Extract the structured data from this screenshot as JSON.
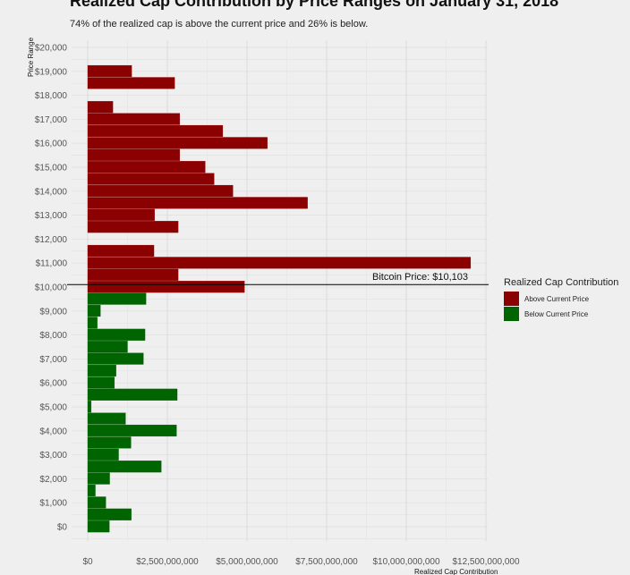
{
  "chart_data": {
    "type": "bar",
    "orientation": "horizontal",
    "title": "Realized Cap Contribution by Price Ranges on January 31, 2018",
    "subtitle": "74% of the realized cap is above the current price and 26% is below.",
    "xlabel": "Realized Cap Contribution",
    "ylabel": "Price Range",
    "xlim": [
      0,
      12500000000
    ],
    "ylim": [
      -1000,
      20000
    ],
    "x_ticks": [
      "$0",
      "$2,500,000,000",
      "$5,000,000,000",
      "$7,500,000,000",
      "$10,000,000,000",
      "$12,500,000,000"
    ],
    "x_tick_values": [
      0,
      2500000000,
      5000000000,
      7500000000,
      10000000000,
      12500000000
    ],
    "y_ticks": [
      "$0",
      "$1,000",
      "$2,000",
      "$3,000",
      "$4,000",
      "$5,000",
      "$6,000",
      "$7,000",
      "$8,000",
      "$9,000",
      "$10,000",
      "$11,000",
      "$12,000",
      "$13,000",
      "$14,000",
      "$15,000",
      "$16,000",
      "$17,000",
      "$18,000",
      "$19,000",
      "$20,000"
    ],
    "y_tick_values": [
      0,
      1000,
      2000,
      3000,
      4000,
      5000,
      6000,
      7000,
      8000,
      9000,
      10000,
      11000,
      12000,
      13000,
      14000,
      15000,
      16000,
      17000,
      18000,
      19000,
      20000
    ],
    "bin_width": 500,
    "reference_line": {
      "value": 10103,
      "label": "Bitcoin Price: $10,103"
    },
    "legend": {
      "title": "Realized Cap Contribution",
      "position": "right",
      "entries": [
        {
          "label": "Above Current Price",
          "color": "#8b0000"
        },
        {
          "label": "Below Current Price",
          "color": "#006400"
        }
      ]
    },
    "series": [
      {
        "name": "Above Current Price",
        "color": "#8b0000",
        "prices": [
          10000,
          10500,
          11000,
          11500,
          12500,
          13000,
          13500,
          14000,
          14500,
          15000,
          15500,
          16000,
          16500,
          17000,
          17500,
          18500,
          19000
        ],
        "values": [
          4920000000,
          2840000000,
          12020000000,
          2080000000,
          2840000000,
          2100000000,
          6900000000,
          4560000000,
          3970000000,
          3690000000,
          2890000000,
          5640000000,
          4240000000,
          2890000000,
          790000000,
          2730000000,
          1380000000
        ]
      },
      {
        "name": "Below Current Price",
        "color": "#006400",
        "prices": [
          0,
          500,
          1000,
          1500,
          2000,
          2500,
          3000,
          3500,
          4000,
          4500,
          5000,
          5500,
          6000,
          6500,
          7000,
          7500,
          8000,
          8500,
          9000,
          9500
        ],
        "values": [
          680000000,
          1370000000,
          570000000,
          240000000,
          690000000,
          2310000000,
          970000000,
          1360000000,
          2790000000,
          1190000000,
          110000000,
          2810000000,
          840000000,
          890000000,
          1750000000,
          1250000000,
          1800000000,
          300000000,
          400000000,
          1830000000
        ]
      }
    ]
  }
}
